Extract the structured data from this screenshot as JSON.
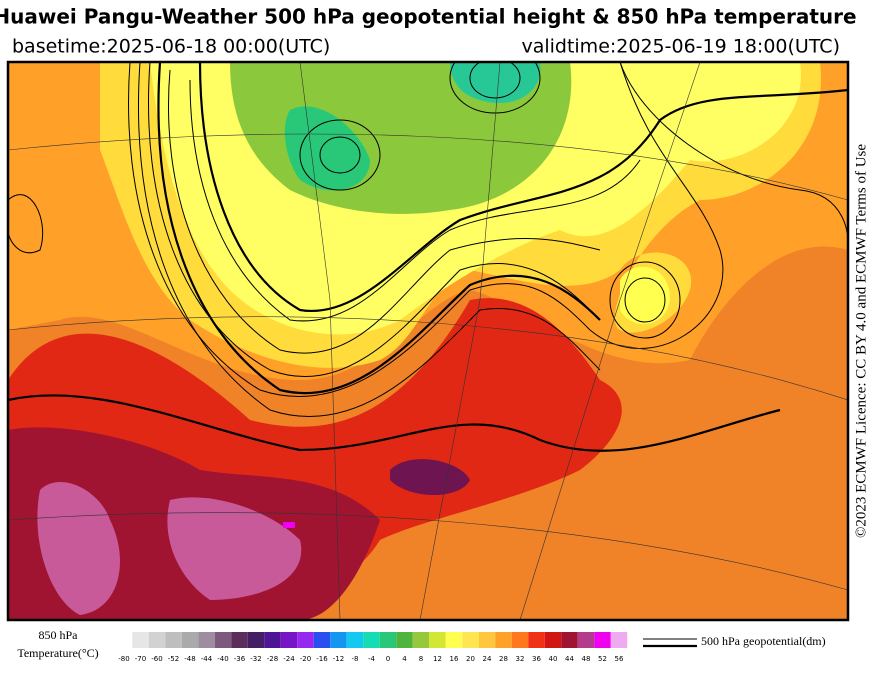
{
  "header": {
    "title": "Huawei Pangu-Weather 500 hPa geopotential height & 850 hPa temperature",
    "basetime": "basetime:2025-06-18 00:00(UTC)",
    "validtime": "validtime:2025-06-19 18:00(UTC)"
  },
  "licence": "©2023 ECMWF Licence: CC BY 4.0 and ECMWF Terms of Use",
  "colorbar": {
    "label_line1": "850 hPa",
    "label_line2": "Temperature(°C)",
    "ticks": [
      -80,
      -70,
      -60,
      -52,
      -48,
      -44,
      -40,
      -36,
      -32,
      -28,
      -24,
      -20,
      -16,
      -12,
      -8,
      -4,
      0,
      4,
      8,
      12,
      16,
      20,
      24,
      28,
      32,
      36,
      40,
      44,
      48,
      52,
      56
    ],
    "colors": [
      "#e6e6e6",
      "#d2d2d2",
      "#bebebe",
      "#aaaaaa",
      "#a08ca0",
      "#7d5a7d",
      "#5a2d5a",
      "#461e64",
      "#501496",
      "#7814c8",
      "#9628f0",
      "#2850f0",
      "#1496f0",
      "#14c8f0",
      "#14dcb4",
      "#28c878",
      "#50b43c",
      "#96c83c",
      "#d2e632",
      "#ffff50",
      "#ffe650",
      "#ffc83c",
      "#ffa028",
      "#ff781e",
      "#f03214",
      "#d21414",
      "#a01432",
      "#b43c8c",
      "#f000f0",
      "#f0aaf0"
    ]
  },
  "contour_legend": "500 hPa geopotential(dm)"
}
